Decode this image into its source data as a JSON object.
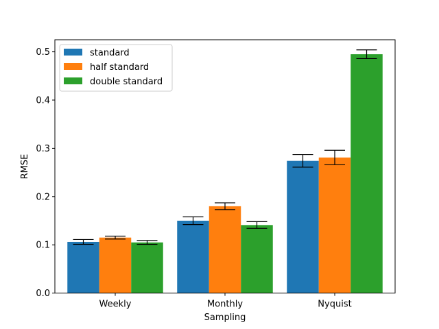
{
  "chart_data": {
    "type": "bar",
    "xlabel": "Sampling",
    "ylabel": "RMSE",
    "categories": [
      "Weekly",
      "Monthly",
      "Nyquist"
    ],
    "ylim": [
      0,
      0.525
    ],
    "yticks": [
      0.0,
      0.1,
      0.2,
      0.3,
      0.4,
      0.5
    ],
    "ytick_labels": [
      "0.0",
      "0.1",
      "0.2",
      "0.3",
      "0.4",
      "0.5"
    ],
    "grid": false,
    "legend_position": "top-left",
    "series": [
      {
        "name": "standard",
        "color": "#1f77b4",
        "values": [
          0.106,
          0.15,
          0.274
        ],
        "errors": [
          0.005,
          0.008,
          0.013
        ]
      },
      {
        "name": "half standard",
        "color": "#ff7f0e",
        "values": [
          0.115,
          0.18,
          0.281
        ],
        "errors": [
          0.003,
          0.007,
          0.015
        ]
      },
      {
        "name": "double standard",
        "color": "#2ca02c",
        "values": [
          0.105,
          0.141,
          0.495
        ],
        "errors": [
          0.004,
          0.007,
          0.009
        ]
      }
    ]
  }
}
